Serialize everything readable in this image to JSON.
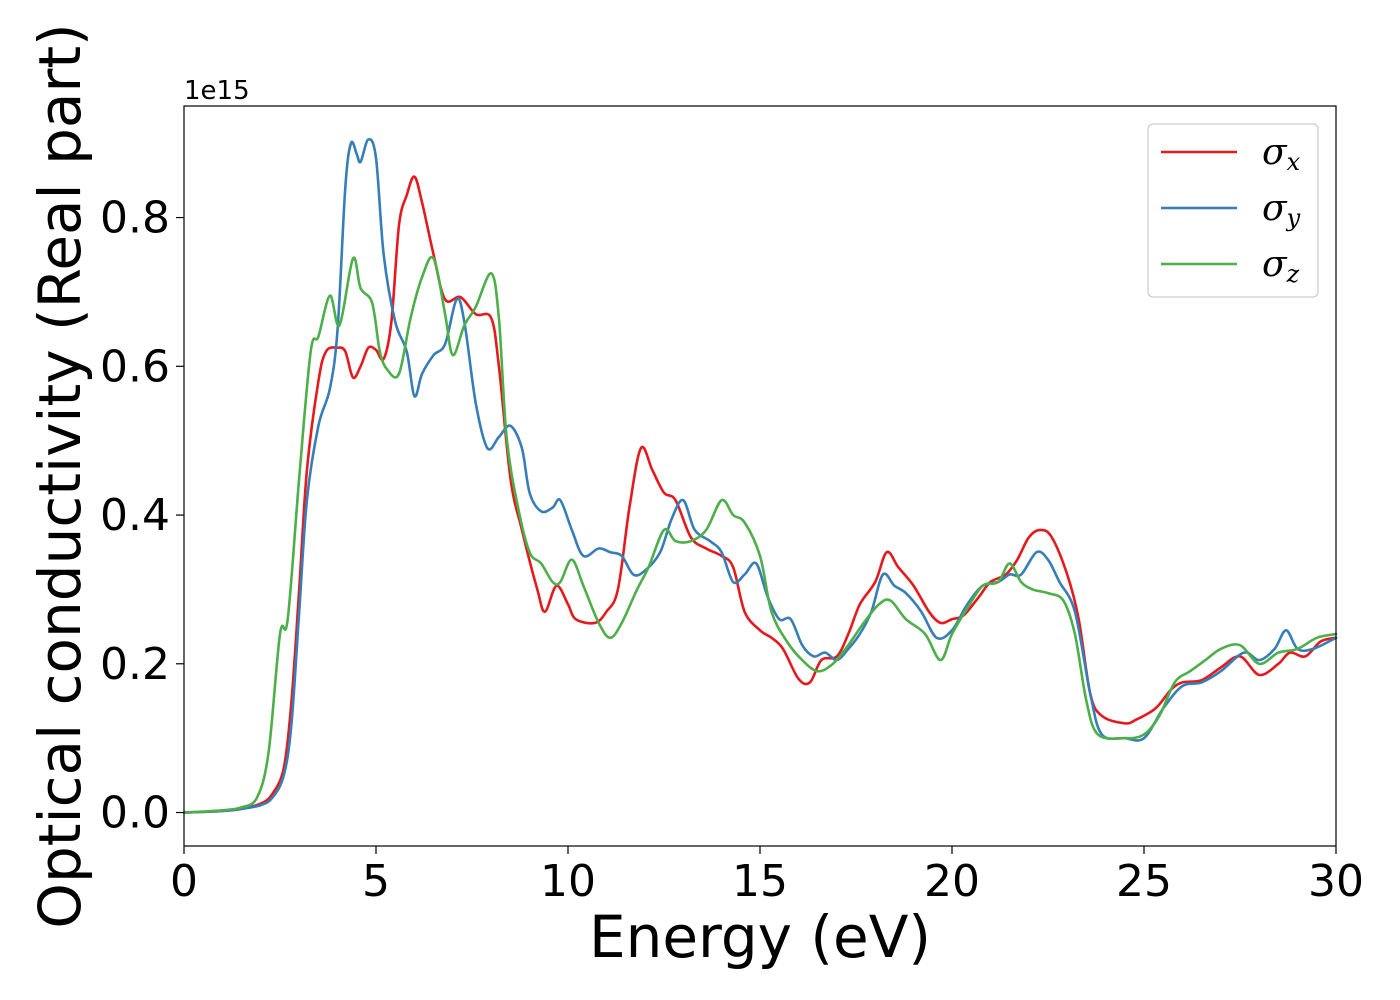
{
  "chart_data": {
    "type": "line",
    "xlabel": "Energy (eV)",
    "ylabel": "Optical conductivity (Real part)",
    "y_offset_text": "1e15",
    "xlim": [
      0,
      30
    ],
    "ylim": [
      -0.045,
      0.95
    ],
    "x_ticks": [
      0,
      5,
      10,
      15,
      20,
      25,
      30
    ],
    "y_ticks": [
      0.0,
      0.2,
      0.4,
      0.6,
      0.8
    ],
    "grid": false,
    "legend_position": "top-right",
    "series": [
      {
        "name": "σx",
        "symbol": "σ",
        "subscript": "x",
        "color": "#e41a1c",
        "points": [
          [
            0,
            0
          ],
          [
            1,
            0.002
          ],
          [
            1.5,
            0.005
          ],
          [
            2,
            0.012
          ],
          [
            2.3,
            0.025
          ],
          [
            2.6,
            0.06
          ],
          [
            2.8,
            0.15
          ],
          [
            3,
            0.3
          ],
          [
            3.2,
            0.46
          ],
          [
            3.5,
            0.58
          ],
          [
            3.7,
            0.62
          ],
          [
            4,
            0.625
          ],
          [
            4.2,
            0.62
          ],
          [
            4.4,
            0.585
          ],
          [
            4.6,
            0.6
          ],
          [
            4.8,
            0.625
          ],
          [
            5,
            0.622
          ],
          [
            5.2,
            0.61
          ],
          [
            5.4,
            0.66
          ],
          [
            5.6,
            0.79
          ],
          [
            5.8,
            0.83
          ],
          [
            6,
            0.855
          ],
          [
            6.2,
            0.82
          ],
          [
            6.5,
            0.75
          ],
          [
            6.8,
            0.69
          ],
          [
            7.2,
            0.693
          ],
          [
            7.6,
            0.67
          ],
          [
            8,
            0.665
          ],
          [
            8.2,
            0.6
          ],
          [
            8.5,
            0.45
          ],
          [
            8.8,
            0.38
          ],
          [
            9.2,
            0.3
          ],
          [
            9.4,
            0.27
          ],
          [
            9.7,
            0.305
          ],
          [
            10,
            0.28
          ],
          [
            10.2,
            0.26
          ],
          [
            10.7,
            0.255
          ],
          [
            11,
            0.27
          ],
          [
            11.3,
            0.3
          ],
          [
            11.6,
            0.41
          ],
          [
            11.9,
            0.49
          ],
          [
            12.2,
            0.46
          ],
          [
            12.5,
            0.43
          ],
          [
            12.8,
            0.42
          ],
          [
            13.2,
            0.37
          ],
          [
            13.6,
            0.355
          ],
          [
            14,
            0.345
          ],
          [
            14.3,
            0.33
          ],
          [
            14.6,
            0.27
          ],
          [
            15,
            0.245
          ],
          [
            15.3,
            0.235
          ],
          [
            15.6,
            0.22
          ],
          [
            16,
            0.18
          ],
          [
            16.3,
            0.175
          ],
          [
            16.6,
            0.205
          ],
          [
            17,
            0.21
          ],
          [
            17.3,
            0.24
          ],
          [
            17.6,
            0.28
          ],
          [
            18,
            0.31
          ],
          [
            18.3,
            0.35
          ],
          [
            18.6,
            0.33
          ],
          [
            19,
            0.305
          ],
          [
            19.4,
            0.27
          ],
          [
            19.7,
            0.255
          ],
          [
            20,
            0.26
          ],
          [
            20.3,
            0.265
          ],
          [
            20.7,
            0.29
          ],
          [
            21,
            0.31
          ],
          [
            21.4,
            0.32
          ],
          [
            21.7,
            0.34
          ],
          [
            22,
            0.37
          ],
          [
            22.3,
            0.38
          ],
          [
            22.6,
            0.37
          ],
          [
            23,
            0.32
          ],
          [
            23.3,
            0.26
          ],
          [
            23.6,
            0.16
          ],
          [
            23.9,
            0.13
          ],
          [
            24.5,
            0.12
          ],
          [
            24.8,
            0.125
          ],
          [
            25.3,
            0.14
          ],
          [
            25.7,
            0.165
          ],
          [
            26,
            0.175
          ],
          [
            26.5,
            0.178
          ],
          [
            27,
            0.195
          ],
          [
            27.5,
            0.21
          ],
          [
            28,
            0.185
          ],
          [
            28.5,
            0.2
          ],
          [
            28.8,
            0.215
          ],
          [
            29.2,
            0.21
          ],
          [
            29.6,
            0.23
          ],
          [
            30,
            0.235
          ]
        ]
      },
      {
        "name": "σy",
        "symbol": "σ",
        "subscript": "y",
        "color": "#377eb8",
        "points": [
          [
            0,
            0
          ],
          [
            1,
            0.002
          ],
          [
            1.5,
            0.005
          ],
          [
            2,
            0.01
          ],
          [
            2.3,
            0.02
          ],
          [
            2.6,
            0.05
          ],
          [
            2.8,
            0.12
          ],
          [
            3,
            0.27
          ],
          [
            3.2,
            0.42
          ],
          [
            3.5,
            0.52
          ],
          [
            3.8,
            0.57
          ],
          [
            4,
            0.65
          ],
          [
            4.2,
            0.84
          ],
          [
            4.35,
            0.9
          ],
          [
            4.5,
            0.885
          ],
          [
            4.6,
            0.875
          ],
          [
            4.8,
            0.905
          ],
          [
            5,
            0.88
          ],
          [
            5.2,
            0.75
          ],
          [
            5.5,
            0.66
          ],
          [
            5.8,
            0.62
          ],
          [
            6,
            0.56
          ],
          [
            6.2,
            0.59
          ],
          [
            6.5,
            0.615
          ],
          [
            6.8,
            0.63
          ],
          [
            7.1,
            0.69
          ],
          [
            7.3,
            0.66
          ],
          [
            7.6,
            0.55
          ],
          [
            7.9,
            0.49
          ],
          [
            8.2,
            0.505
          ],
          [
            8.5,
            0.52
          ],
          [
            8.8,
            0.49
          ],
          [
            9,
            0.43
          ],
          [
            9.3,
            0.405
          ],
          [
            9.6,
            0.41
          ],
          [
            9.8,
            0.42
          ],
          [
            10.1,
            0.38
          ],
          [
            10.4,
            0.345
          ],
          [
            10.8,
            0.355
          ],
          [
            11.1,
            0.35
          ],
          [
            11.4,
            0.345
          ],
          [
            11.7,
            0.32
          ],
          [
            12,
            0.325
          ],
          [
            12.4,
            0.35
          ],
          [
            12.7,
            0.395
          ],
          [
            13,
            0.42
          ],
          [
            13.3,
            0.38
          ],
          [
            13.7,
            0.365
          ],
          [
            14,
            0.35
          ],
          [
            14.3,
            0.31
          ],
          [
            14.6,
            0.32
          ],
          [
            14.9,
            0.335
          ],
          [
            15.2,
            0.29
          ],
          [
            15.5,
            0.26
          ],
          [
            15.8,
            0.26
          ],
          [
            16.1,
            0.225
          ],
          [
            16.4,
            0.21
          ],
          [
            16.7,
            0.215
          ],
          [
            17,
            0.205
          ],
          [
            17.3,
            0.22
          ],
          [
            17.6,
            0.24
          ],
          [
            17.9,
            0.27
          ],
          [
            18.2,
            0.32
          ],
          [
            18.5,
            0.305
          ],
          [
            18.8,
            0.295
          ],
          [
            19.2,
            0.27
          ],
          [
            19.6,
            0.235
          ],
          [
            20,
            0.245
          ],
          [
            20.4,
            0.28
          ],
          [
            20.8,
            0.305
          ],
          [
            21.2,
            0.31
          ],
          [
            21.5,
            0.32
          ],
          [
            21.8,
            0.32
          ],
          [
            22.2,
            0.35
          ],
          [
            22.5,
            0.34
          ],
          [
            22.8,
            0.31
          ],
          [
            23.2,
            0.27
          ],
          [
            23.6,
            0.16
          ],
          [
            23.9,
            0.105
          ],
          [
            24.5,
            0.1
          ],
          [
            25,
            0.1
          ],
          [
            25.5,
            0.14
          ],
          [
            26,
            0.17
          ],
          [
            26.5,
            0.175
          ],
          [
            27,
            0.19
          ],
          [
            27.6,
            0.215
          ],
          [
            28,
            0.205
          ],
          [
            28.4,
            0.22
          ],
          [
            28.7,
            0.245
          ],
          [
            29,
            0.22
          ],
          [
            29.4,
            0.22
          ],
          [
            30,
            0.235
          ]
        ]
      },
      {
        "name": "σz",
        "symbol": "σ",
        "subscript": "z",
        "color": "#4daf4a",
        "points": [
          [
            0,
            0
          ],
          [
            1,
            0.003
          ],
          [
            1.5,
            0.007
          ],
          [
            1.9,
            0.02
          ],
          [
            2.2,
            0.08
          ],
          [
            2.5,
            0.24
          ],
          [
            2.7,
            0.26
          ],
          [
            3,
            0.45
          ],
          [
            3.3,
            0.62
          ],
          [
            3.5,
            0.64
          ],
          [
            3.8,
            0.695
          ],
          [
            4.05,
            0.655
          ],
          [
            4.4,
            0.745
          ],
          [
            4.6,
            0.705
          ],
          [
            4.9,
            0.685
          ],
          [
            5.1,
            0.62
          ],
          [
            5.3,
            0.595
          ],
          [
            5.6,
            0.59
          ],
          [
            5.9,
            0.665
          ],
          [
            6.2,
            0.72
          ],
          [
            6.5,
            0.745
          ],
          [
            6.8,
            0.67
          ],
          [
            7,
            0.615
          ],
          [
            7.3,
            0.655
          ],
          [
            7.6,
            0.68
          ],
          [
            8,
            0.725
          ],
          [
            8.2,
            0.665
          ],
          [
            8.4,
            0.505
          ],
          [
            8.7,
            0.41
          ],
          [
            9,
            0.35
          ],
          [
            9.3,
            0.335
          ],
          [
            9.6,
            0.31
          ],
          [
            9.8,
            0.31
          ],
          [
            10.1,
            0.34
          ],
          [
            10.4,
            0.305
          ],
          [
            10.8,
            0.255
          ],
          [
            11.1,
            0.235
          ],
          [
            11.4,
            0.255
          ],
          [
            11.8,
            0.3
          ],
          [
            12.1,
            0.33
          ],
          [
            12.5,
            0.38
          ],
          [
            12.8,
            0.365
          ],
          [
            13.2,
            0.365
          ],
          [
            13.6,
            0.38
          ],
          [
            14,
            0.42
          ],
          [
            14.3,
            0.4
          ],
          [
            14.6,
            0.39
          ],
          [
            15,
            0.345
          ],
          [
            15.3,
            0.27
          ],
          [
            15.7,
            0.23
          ],
          [
            16.1,
            0.205
          ],
          [
            16.5,
            0.19
          ],
          [
            16.9,
            0.2
          ],
          [
            17.3,
            0.225
          ],
          [
            17.7,
            0.255
          ],
          [
            18.1,
            0.28
          ],
          [
            18.4,
            0.285
          ],
          [
            18.8,
            0.26
          ],
          [
            19.3,
            0.24
          ],
          [
            19.7,
            0.205
          ],
          [
            20,
            0.24
          ],
          [
            20.4,
            0.275
          ],
          [
            20.8,
            0.305
          ],
          [
            21.2,
            0.31
          ],
          [
            21.5,
            0.335
          ],
          [
            21.8,
            0.31
          ],
          [
            22.1,
            0.3
          ],
          [
            22.5,
            0.295
          ],
          [
            22.9,
            0.285
          ],
          [
            23.2,
            0.24
          ],
          [
            23.5,
            0.15
          ],
          [
            23.8,
            0.105
          ],
          [
            24.5,
            0.1
          ],
          [
            25,
            0.105
          ],
          [
            25.4,
            0.13
          ],
          [
            25.8,
            0.175
          ],
          [
            26.2,
            0.19
          ],
          [
            26.6,
            0.205
          ],
          [
            27,
            0.22
          ],
          [
            27.5,
            0.225
          ],
          [
            28,
            0.2
          ],
          [
            28.5,
            0.215
          ],
          [
            29,
            0.22
          ],
          [
            29.5,
            0.235
          ],
          [
            30,
            0.24
          ]
        ]
      }
    ]
  }
}
